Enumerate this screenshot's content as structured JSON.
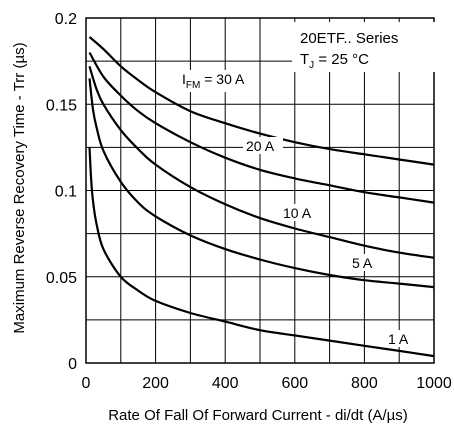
{
  "chart_data": {
    "type": "line",
    "xlabel": "Rate Of Fall Of Forward Current - di/dt (A/µs)",
    "ylabel": "Maximum Reverse Recovery Time - Trr (µs)",
    "xlim": [
      0,
      1000
    ],
    "ylim": [
      0,
      0.2
    ],
    "x_ticks": [
      0,
      200,
      400,
      600,
      800,
      1000
    ],
    "x_tick_labels": [
      "0",
      "200",
      "400",
      "600",
      "800",
      "1000"
    ],
    "y_ticks": [
      0,
      0.05,
      0.1,
      0.15,
      0.2
    ],
    "y_tick_labels": [
      "0",
      "0.05",
      "0.1",
      "0.15",
      "0.2"
    ],
    "y_minor_grid": [
      0.025,
      0.075,
      0.125,
      0.175
    ],
    "grid": true,
    "legend": {
      "line1": "20ETF.. Series",
      "line2_main": "T",
      "line2_sub": "J",
      "line2_rest": " = 25 °C",
      "placement": "top-right"
    },
    "series": [
      {
        "name": "I FM = 30 A",
        "label_main": "I",
        "label_sub": "FM",
        "label_rest": " = 30 A",
        "x": [
          10,
          50,
          100,
          150,
          200,
          300,
          400,
          500,
          600,
          700,
          800,
          900,
          1000
        ],
        "y": [
          0.189,
          0.182,
          0.172,
          0.164,
          0.157,
          0.146,
          0.139,
          0.133,
          0.128,
          0.124,
          0.121,
          0.118,
          0.115
        ]
      },
      {
        "name": "20 A",
        "label": "20 A",
        "x": [
          10,
          50,
          100,
          150,
          200,
          300,
          400,
          500,
          600,
          700,
          800,
          900,
          1000
        ],
        "y": [
          0.18,
          0.166,
          0.155,
          0.146,
          0.139,
          0.128,
          0.119,
          0.112,
          0.107,
          0.103,
          0.099,
          0.096,
          0.093
        ]
      },
      {
        "name": "10 A",
        "label": "10 A",
        "x": [
          10,
          30,
          50,
          100,
          150,
          200,
          300,
          400,
          500,
          600,
          700,
          800,
          900,
          1000
        ],
        "y": [
          0.172,
          0.159,
          0.15,
          0.135,
          0.124,
          0.115,
          0.102,
          0.092,
          0.084,
          0.078,
          0.073,
          0.068,
          0.064,
          0.061
        ]
      },
      {
        "name": "5 A",
        "label": "5 A",
        "x": [
          10,
          20,
          30,
          50,
          100,
          150,
          200,
          300,
          400,
          500,
          600,
          700,
          800,
          900,
          1000
        ],
        "y": [
          0.165,
          0.147,
          0.137,
          0.123,
          0.105,
          0.093,
          0.085,
          0.074,
          0.066,
          0.06,
          0.055,
          0.051,
          0.048,
          0.046,
          0.044
        ]
      },
      {
        "name": "1 A",
        "label": "1 A",
        "x": [
          10,
          15,
          20,
          30,
          50,
          100,
          150,
          200,
          300,
          400,
          500,
          600,
          700,
          800,
          900,
          1000
        ],
        "y": [
          0.125,
          0.106,
          0.094,
          0.081,
          0.066,
          0.05,
          0.042,
          0.036,
          0.029,
          0.024,
          0.019,
          0.016,
          0.013,
          0.01,
          0.007,
          0.004
        ]
      }
    ]
  }
}
